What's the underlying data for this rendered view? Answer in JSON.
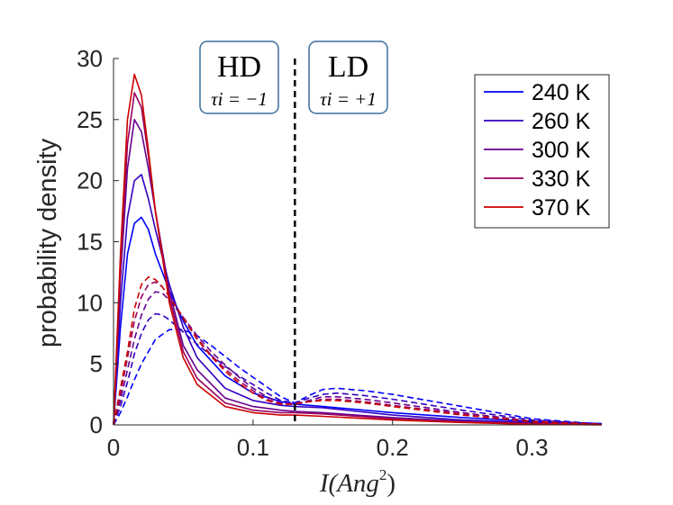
{
  "chart_data": {
    "type": "line",
    "xlabel": "I(Ang²)",
    "xlabel_base": "I(Ang",
    "xlabel_sup": "2",
    "xlabel_close": ")",
    "ylabel": "probability density",
    "xlim": [
      0,
      0.35
    ],
    "ylim": [
      0,
      30
    ],
    "xticks": [
      0,
      0.1,
      0.2,
      0.3
    ],
    "xtick_labels": [
      "0",
      "0.1",
      "0.2",
      "0.3"
    ],
    "yticks": [
      0,
      5,
      10,
      15,
      20,
      25,
      30
    ],
    "ytick_labels": [
      "0",
      "5",
      "10",
      "15",
      "20",
      "25",
      "30"
    ],
    "divider_x": 0.13,
    "annotations": [
      {
        "label": "HD",
        "sub": "τi = −1"
      },
      {
        "label": "LD",
        "sub": "τi = +1"
      }
    ],
    "legend": {
      "position": "top-right"
    },
    "series": [
      {
        "name": "240 K",
        "color": "#0000ff",
        "solid": {
          "x": [
            0,
            0.005,
            0.01,
            0.015,
            0.02,
            0.025,
            0.03,
            0.04,
            0.05,
            0.06,
            0.08,
            0.1,
            0.12,
            0.13,
            0.15,
            0.2,
            0.25,
            0.3,
            0.35
          ],
          "y": [
            0,
            8,
            14,
            16.5,
            17,
            16,
            14,
            11,
            8.5,
            6.5,
            4,
            2.6,
            1.9,
            1.7,
            1.5,
            1,
            0.6,
            0.3,
            0.1
          ]
        },
        "dashed": {
          "x": [
            0,
            0.005,
            0.01,
            0.015,
            0.02,
            0.03,
            0.04,
            0.05,
            0.06,
            0.07,
            0.08,
            0.09,
            0.1,
            0.11,
            0.12,
            0.13,
            0.14,
            0.15,
            0.16,
            0.18,
            0.2,
            0.25,
            0.3,
            0.35
          ],
          "y": [
            0,
            1,
            2.3,
            3.7,
            5,
            7,
            7.8,
            7.8,
            7.3,
            6.5,
            5.6,
            4.7,
            3.9,
            3.1,
            2.3,
            1.8,
            2.4,
            2.9,
            3,
            2.8,
            2.5,
            1.5,
            0.5,
            0.05
          ]
        }
      },
      {
        "name": "260 K",
        "color": "#3300c0",
        "solid": {
          "x": [
            0,
            0.005,
            0.01,
            0.015,
            0.02,
            0.025,
            0.03,
            0.04,
            0.05,
            0.06,
            0.08,
            0.1,
            0.12,
            0.13,
            0.15,
            0.2,
            0.25,
            0.3,
            0.35
          ],
          "y": [
            0,
            10,
            17,
            20,
            20.5,
            18.5,
            16,
            11.5,
            8,
            5.5,
            3,
            2,
            1.6,
            1.5,
            1.4,
            0.8,
            0.4,
            0.2,
            0.05
          ]
        },
        "dashed": {
          "x": [
            0,
            0.005,
            0.01,
            0.015,
            0.02,
            0.025,
            0.03,
            0.035,
            0.04,
            0.05,
            0.06,
            0.07,
            0.08,
            0.09,
            0.1,
            0.11,
            0.12,
            0.13,
            0.14,
            0.15,
            0.16,
            0.18,
            0.2,
            0.25,
            0.3,
            0.35
          ],
          "y": [
            0,
            1.5,
            3.5,
            5.8,
            7.5,
            8.6,
            9.1,
            9,
            8.6,
            7.6,
            6.6,
            5.7,
            4.8,
            4,
            3.3,
            2.6,
            2,
            1.8,
            2.2,
            2.5,
            2.6,
            2.4,
            2.1,
            1.2,
            0.4,
            0.05
          ]
        }
      },
      {
        "name": "300 K",
        "color": "#660090",
        "solid": {
          "x": [
            0,
            0.005,
            0.01,
            0.015,
            0.02,
            0.025,
            0.03,
            0.04,
            0.05,
            0.06,
            0.08,
            0.1,
            0.12,
            0.13,
            0.15,
            0.2,
            0.25,
            0.3,
            0.35
          ],
          "y": [
            0,
            12,
            21,
            25,
            24,
            21,
            17.5,
            11,
            6.5,
            4.5,
            2.2,
            1.5,
            1.2,
            1.1,
            1,
            0.6,
            0.3,
            0.1,
            0.02
          ]
        },
        "dashed": {
          "x": [
            0,
            0.005,
            0.01,
            0.015,
            0.02,
            0.025,
            0.03,
            0.035,
            0.04,
            0.05,
            0.06,
            0.07,
            0.08,
            0.09,
            0.1,
            0.11,
            0.12,
            0.13,
            0.14,
            0.15,
            0.16,
            0.18,
            0.2,
            0.25,
            0.3,
            0.35
          ],
          "y": [
            0,
            2,
            4.5,
            7,
            9,
            10.3,
            10.9,
            10.8,
            10.2,
            8.8,
            7.3,
            6,
            4.9,
            3.9,
            3,
            2.3,
            1.8,
            1.7,
            2,
            2.3,
            2.3,
            2.1,
            1.8,
            1,
            0.3,
            0.05
          ]
        }
      },
      {
        "name": "330 K",
        "color": "#990060",
        "solid": {
          "x": [
            0,
            0.005,
            0.01,
            0.015,
            0.02,
            0.025,
            0.03,
            0.04,
            0.05,
            0.06,
            0.08,
            0.1,
            0.12,
            0.13,
            0.15,
            0.2,
            0.25,
            0.3,
            0.35
          ],
          "y": [
            0,
            13,
            23,
            27.2,
            26,
            22,
            17.5,
            10.5,
            6,
            3.8,
            1.8,
            1.2,
            1,
            1,
            0.9,
            0.5,
            0.25,
            0.1,
            0.02
          ]
        },
        "dashed": {
          "x": [
            0,
            0.005,
            0.01,
            0.015,
            0.02,
            0.025,
            0.03,
            0.035,
            0.04,
            0.05,
            0.06,
            0.07,
            0.08,
            0.09,
            0.1,
            0.11,
            0.12,
            0.13,
            0.14,
            0.15,
            0.16,
            0.18,
            0.2,
            0.25,
            0.3,
            0.35
          ],
          "y": [
            0,
            2.5,
            5.5,
            8.5,
            10.5,
            11.5,
            11.7,
            11.3,
            10.5,
            8.8,
            7.1,
            5.7,
            4.6,
            3.6,
            2.8,
            2.1,
            1.7,
            1.7,
            1.9,
            2.1,
            2.1,
            1.9,
            1.6,
            0.9,
            0.3,
            0.05
          ]
        }
      },
      {
        "name": "370 K",
        "color": "#cc0000",
        "solid": {
          "x": [
            0,
            0.005,
            0.01,
            0.015,
            0.02,
            0.025,
            0.03,
            0.04,
            0.05,
            0.06,
            0.08,
            0.1,
            0.12,
            0.13,
            0.15,
            0.2,
            0.25,
            0.3,
            0.35
          ],
          "y": [
            0,
            14,
            25,
            28.7,
            27,
            22.5,
            17.5,
            10,
            5.5,
            3.3,
            1.5,
            1,
            0.8,
            0.8,
            0.7,
            0.4,
            0.2,
            0.05,
            0.01
          ]
        },
        "dashed": {
          "x": [
            0,
            0.005,
            0.01,
            0.015,
            0.02,
            0.025,
            0.03,
            0.035,
            0.04,
            0.05,
            0.06,
            0.07,
            0.08,
            0.09,
            0.1,
            0.11,
            0.12,
            0.13,
            0.14,
            0.15,
            0.16,
            0.18,
            0.2,
            0.25,
            0.3,
            0.35
          ],
          "y": [
            0,
            3,
            6,
            9.5,
            11.5,
            12.1,
            11.9,
            11.3,
            10.5,
            8.7,
            7,
            5.6,
            4.4,
            3.4,
            2.6,
            2,
            1.7,
            1.7,
            1.9,
            2,
            2,
            1.8,
            1.5,
            0.8,
            0.25,
            0.05
          ]
        }
      }
    ]
  }
}
